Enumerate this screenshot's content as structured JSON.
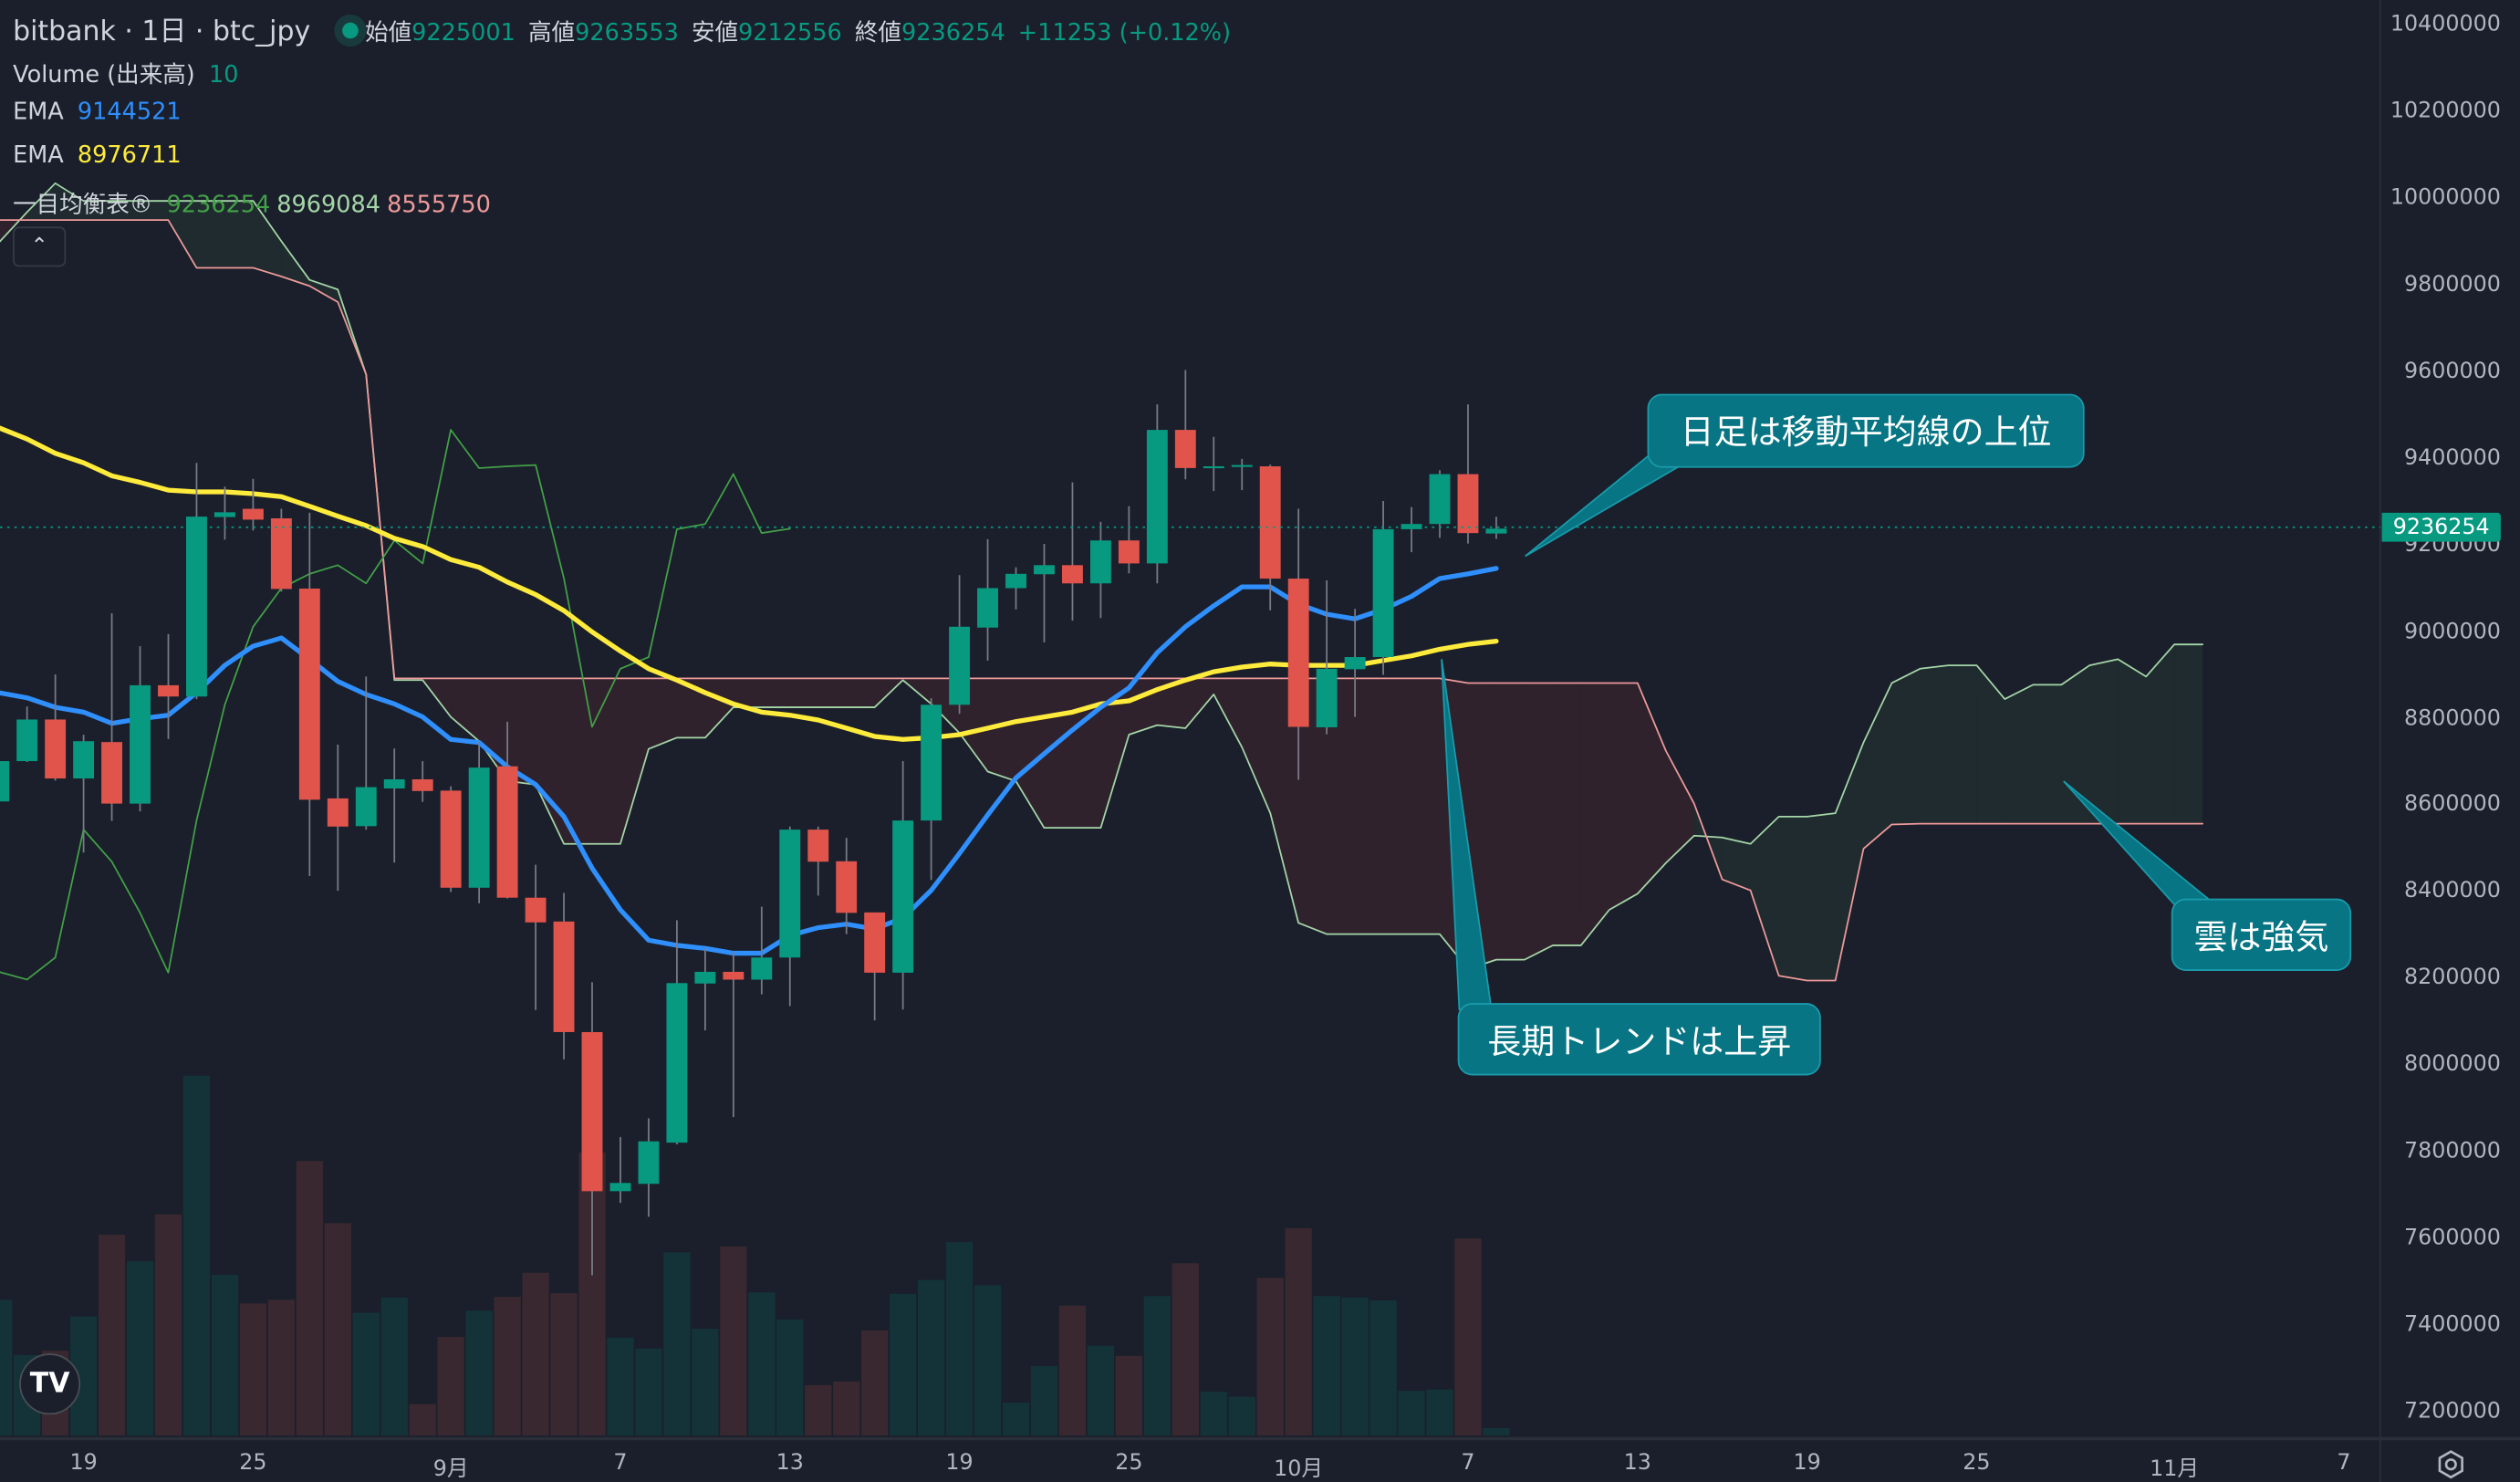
{
  "header": {
    "symbol_title": "bitbank · 1日 · btc_jpy",
    "open_label": "始値",
    "open_value": "9225001",
    "high_label": "高値",
    "high_value": "9263553",
    "low_label": "安値",
    "low_value": "9212556",
    "close_label": "終値",
    "close_value": "9236254",
    "change": "+11253 (+0.12%)"
  },
  "indicators": {
    "volume_label": "Volume (出来高)",
    "volume_value": "10",
    "ema1_label": "EMA",
    "ema1_value": "9144521",
    "ema2_label": "EMA",
    "ema2_value": "8976711",
    "ichimoku_label": "一目均衡表®",
    "ichimoku_lagging": "9236254",
    "ichimoku_lead_a": "8969084",
    "ichimoku_lead_b": "8555750"
  },
  "controls": {
    "collapse_icon": "chevron-up",
    "logo": "TV",
    "settings_icon": "gear"
  },
  "last_price": "9236254",
  "annotations": [
    {
      "text": "日足は移動平均線の上位"
    },
    {
      "text": "長期トレンドは上昇"
    },
    {
      "text": "雲は強気"
    }
  ],
  "colors": {
    "up": "#089981",
    "down": "#e0544c",
    "vol_up": "#143339",
    "vol_down": "#3a2830",
    "ema_fast": "#2f8ffc",
    "ema_slow": "#ffeb3b",
    "lagging": "#43a047",
    "lead_a": "#a5d6a7",
    "lead_b": "#ef9a9a",
    "cloud_bull": "#1f2b2f",
    "cloud_bear": "#2f222d"
  },
  "chart_data": {
    "type": "candlestick",
    "title": "bitbank · 1日 · btc_jpy",
    "ylim": [
      7200000,
      10400000
    ],
    "yticks": [
      10400000,
      10200000,
      10000000,
      9800000,
      9600000,
      9400000,
      9200000,
      9000000,
      8800000,
      8600000,
      8400000,
      8200000,
      8000000,
      7800000,
      7600000,
      7400000,
      7200000
    ],
    "xticks": [
      {
        "label": "19",
        "index": 3
      },
      {
        "label": "25",
        "index": 9
      },
      {
        "label": "9月",
        "index": 16
      },
      {
        "label": "7",
        "index": 22
      },
      {
        "label": "13",
        "index": 28
      },
      {
        "label": "19",
        "index": 34
      },
      {
        "label": "25",
        "index": 40
      },
      {
        "label": "10月",
        "index": 46
      },
      {
        "label": "7",
        "index": 52
      },
      {
        "label": "13",
        "index": 58
      },
      {
        "label": "19",
        "index": 64
      },
      {
        "label": "25",
        "index": 70
      },
      {
        "label": "11月",
        "index": 77
      },
      {
        "label": "7",
        "index": 83
      }
    ],
    "ohlc_fields": [
      "open",
      "high",
      "low",
      "close"
    ],
    "candles": [
      [
        8607000,
        8713000,
        8583000,
        8700000
      ],
      [
        8700000,
        8826000,
        8698000,
        8796000
      ],
      [
        8796000,
        8900000,
        8655000,
        8660000
      ],
      [
        8660000,
        8761000,
        8489000,
        8746000
      ],
      [
        8744000,
        9041000,
        8562000,
        8602000
      ],
      [
        8602000,
        8965000,
        8584000,
        8875000
      ],
      [
        8875000,
        8993000,
        8751000,
        8849000
      ],
      [
        8849000,
        9388000,
        8843000,
        9264000
      ],
      [
        9263000,
        9333000,
        9211000,
        9274000
      ],
      [
        9282000,
        9351000,
        9232000,
        9257000
      ],
      [
        9260000,
        9282000,
        9091000,
        9097000
      ],
      [
        9098000,
        9273000,
        8435000,
        8611000
      ],
      [
        8614000,
        8738000,
        8401000,
        8549000
      ],
      [
        8550000,
        8895000,
        8542000,
        8640000
      ],
      [
        8637000,
        8729000,
        8466000,
        8658000
      ],
      [
        8658000,
        8700000,
        8606000,
        8631000
      ],
      [
        8632000,
        8642000,
        8398000,
        8408000
      ],
      [
        8408000,
        8745000,
        8372000,
        8685000
      ],
      [
        8688000,
        8791000,
        8383000,
        8385000
      ],
      [
        8385000,
        8461000,
        8126000,
        8328000
      ],
      [
        8330000,
        8396000,
        8012000,
        8075000
      ],
      [
        8075000,
        8190000,
        7514000,
        7708000
      ],
      [
        7708000,
        7833000,
        7681000,
        7727000
      ],
      [
        7725000,
        7876000,
        7649000,
        7823000
      ],
      [
        7820000,
        8333000,
        7816000,
        8188000
      ],
      [
        8187000,
        8268000,
        8079000,
        8214000
      ],
      [
        8214000,
        8261000,
        7879000,
        8196000
      ],
      [
        8196000,
        8364000,
        8162000,
        8247000
      ],
      [
        8247000,
        8549000,
        8135000,
        8542000
      ],
      [
        8542000,
        8549000,
        8390000,
        8468000
      ],
      [
        8469000,
        8523000,
        8301000,
        8350000
      ],
      [
        8351000,
        8351000,
        8102000,
        8212000
      ],
      [
        8212000,
        8700000,
        8127000,
        8563000
      ],
      [
        8563000,
        8845000,
        8426000,
        8830000
      ],
      [
        8830000,
        9129000,
        8809000,
        9010000
      ],
      [
        9008000,
        9212000,
        8932000,
        9099000
      ],
      [
        9099000,
        9147000,
        9050000,
        9132000
      ],
      [
        9131000,
        9201000,
        8974000,
        9152000
      ],
      [
        9152000,
        9343000,
        9024000,
        9110000
      ],
      [
        9110000,
        9252000,
        9030000,
        9209000
      ],
      [
        9209000,
        9288000,
        9133000,
        9156000
      ],
      [
        9156000,
        9523000,
        9110000,
        9464000
      ],
      [
        9464000,
        9602000,
        9350000,
        9376000
      ],
      [
        9376000,
        9448000,
        9323000,
        9380000
      ],
      [
        9380000,
        9397000,
        9325000,
        9383000
      ],
      [
        9380000,
        9384000,
        9048000,
        9121000
      ],
      [
        9121000,
        9282000,
        8657000,
        8779000
      ],
      [
        8778000,
        9117000,
        8762000,
        8913000
      ],
      [
        8912000,
        9051000,
        8802000,
        8940000
      ],
      [
        8940000,
        9300000,
        8899000,
        9235000
      ],
      [
        9235000,
        9286000,
        9182000,
        9247000
      ],
      [
        9247000,
        9371000,
        9215000,
        9362000
      ],
      [
        9362000,
        9523000,
        9202000,
        9226000
      ],
      [
        9225001,
        9263553,
        9212556,
        9236254
      ]
    ],
    "volume": [
      186,
      110,
      116,
      163,
      275,
      239,
      303,
      493,
      220,
      181,
      186,
      376,
      291,
      168,
      189,
      43,
      135,
      171,
      190,
      223,
      195,
      388,
      134,
      119,
      251,
      146,
      259,
      196,
      159,
      69,
      74,
      144,
      194,
      213,
      265,
      206,
      45,
      95,
      178,
      123,
      109,
      191,
      236,
      60,
      53,
      216,
      284,
      191,
      189,
      185,
      61,
      63,
      270,
      10
    ],
    "series": [
      {
        "name": "EMA fast",
        "values": [
          8858000,
          8846000,
          8824000,
          8813000,
          8787000,
          8798000,
          8806000,
          8858000,
          8921000,
          8965000,
          8984000,
          8935000,
          8884000,
          8854000,
          8832000,
          8802000,
          8750000,
          8743000,
          8687000,
          8646000,
          8572000,
          8453000,
          8357000,
          8287000,
          8275000,
          8268000,
          8257000,
          8257000,
          8298000,
          8316000,
          8324000,
          8313000,
          8338000,
          8402000,
          8487000,
          8576000,
          8661000,
          8717000,
          8772000,
          8824000,
          8869000,
          8950000,
          9010000,
          9058000,
          9102000,
          9102000,
          9062000,
          9039000,
          9028000,
          9050000,
          9080000,
          9121000,
          9132000,
          9144521
        ]
      },
      {
        "name": "EMA slow",
        "values": [
          9469000,
          9443000,
          9410000,
          9388000,
          9358000,
          9343000,
          9325000,
          9321000,
          9321000,
          9317000,
          9310000,
          9288000,
          9265000,
          9243000,
          9214000,
          9195000,
          9165000,
          9147000,
          9113000,
          9084000,
          9047000,
          8998000,
          8954000,
          8913000,
          8887000,
          8858000,
          8832000,
          8813000,
          8806000,
          8795000,
          8776000,
          8757000,
          8750000,
          8754000,
          8761000,
          8776000,
          8791000,
          8802000,
          8813000,
          8832000,
          8839000,
          8865000,
          8887000,
          8906000,
          8917000,
          8924000,
          8921000,
          8921000,
          8921000,
          8932000,
          8943000,
          8958000,
          8969000,
          8976711
        ]
      },
      {
        "name": "Ichimoku lagging span",
        "shift": -25,
        "source": "close"
      },
      {
        "name": "Ichimoku leading span A",
        "values": [
          9896000,
          9966000,
          10033000,
          9992000,
          9992000,
          9992000,
          9992000,
          9992000,
          9992000,
          9992000,
          9899000,
          9810000,
          9788000,
          9592000,
          8887000,
          8887000,
          8802000,
          8746000,
          8654000,
          8646000,
          8509000,
          8509000,
          8509000,
          8728000,
          8754000,
          8754000,
          8824000,
          8824000,
          8824000,
          8824000,
          8824000,
          8824000,
          8887000,
          8832000,
          8765000,
          8676000,
          8654000,
          8546000,
          8546000,
          8546000,
          8761000,
          8783000,
          8776000,
          8854000,
          8732000,
          8580000,
          8327000,
          8301000,
          8301000,
          8301000,
          8301000,
          8301000,
          8220000,
          8242000,
          8242000,
          8275000,
          8275000,
          8357000,
          8394000,
          8465000,
          8528000,
          8524000,
          8509000,
          8572000,
          8572000,
          8580000,
          8743000,
          8880000,
          8913000,
          8921000,
          8921000,
          8843000,
          8876000,
          8876000,
          8921000,
          8935000,
          8895000,
          8969084,
          8969084
        ]
      },
      {
        "name": "Ichimoku leading span B",
        "values": [
          9948000,
          9948000,
          9948000,
          9948000,
          9948000,
          9948000,
          9948000,
          9838000,
          9838000,
          9838000,
          9818000,
          9796000,
          9759000,
          9592000,
          8891000,
          8891000,
          8891000,
          8891000,
          8891000,
          8891000,
          8891000,
          8891000,
          8891000,
          8891000,
          8891000,
          8891000,
          8891000,
          8891000,
          8891000,
          8891000,
          8891000,
          8891000,
          8891000,
          8891000,
          8891000,
          8891000,
          8891000,
          8891000,
          8891000,
          8891000,
          8891000,
          8891000,
          8891000,
          8891000,
          8891000,
          8891000,
          8891000,
          8891000,
          8891000,
          8891000,
          8891000,
          8891000,
          8880000,
          8880000,
          8880000,
          8880000,
          8880000,
          8880000,
          8880000,
          8724000,
          8602000,
          8427000,
          8402000,
          8205000,
          8194000,
          8194000,
          8498000,
          8554000,
          8555750,
          8555750,
          8555750,
          8555750,
          8555750,
          8555750,
          8555750,
          8555750,
          8555750,
          8555750,
          8555750
        ]
      }
    ]
  }
}
